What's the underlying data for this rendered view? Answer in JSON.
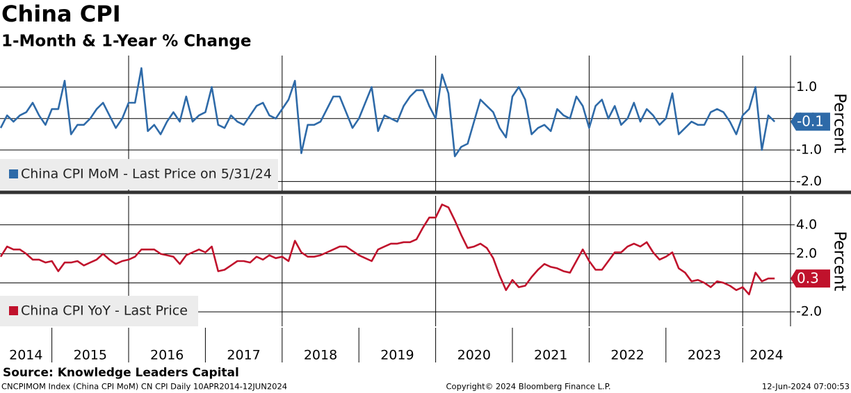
{
  "header": {
    "title": "China CPI",
    "subtitle": "1-Month & 1-Year % Change"
  },
  "chart_data": [
    {
      "type": "line",
      "series": [
        {
          "name": "China CPI MoM - Last Price on 5/31/24",
          "color": "#2e6aa8",
          "values": [
            -0.3,
            0.1,
            -0.1,
            0.1,
            0.2,
            0.5,
            0.1,
            -0.2,
            0.3,
            0.3,
            1.2,
            -0.5,
            -0.2,
            -0.2,
            0.0,
            0.3,
            0.5,
            0.1,
            -0.3,
            0.0,
            0.5,
            0.5,
            1.6,
            -0.4,
            -0.2,
            -0.5,
            -0.1,
            0.2,
            -0.1,
            0.7,
            -0.1,
            0.1,
            0.2,
            1.0,
            -0.2,
            -0.3,
            0.1,
            -0.1,
            -0.2,
            0.1,
            0.4,
            0.5,
            0.1,
            0.0,
            0.3,
            0.6,
            1.2,
            -1.1,
            -0.2,
            -0.2,
            -0.1,
            0.3,
            0.7,
            0.7,
            0.2,
            -0.3,
            0.0,
            0.5,
            1.0,
            -0.4,
            0.1,
            0.0,
            -0.1,
            0.4,
            0.7,
            0.9,
            0.9,
            0.4,
            0.0,
            1.4,
            0.8,
            -1.2,
            -0.9,
            -0.8,
            -0.1,
            0.6,
            0.4,
            0.2,
            -0.3,
            -0.6,
            0.7,
            1.0,
            0.6,
            -0.5,
            -0.3,
            -0.2,
            -0.4,
            0.3,
            0.1,
            0.0,
            0.7,
            0.4,
            -0.3,
            0.4,
            0.6,
            0.0,
            0.4,
            -0.2,
            0.0,
            0.5,
            -0.1,
            0.3,
            0.1,
            -0.2,
            0.0,
            0.8,
            -0.5,
            -0.3,
            -0.1,
            -0.2,
            -0.2,
            0.2,
            0.3,
            0.2,
            -0.1,
            -0.5,
            0.1,
            0.3,
            1.0,
            -1.0,
            0.1,
            -0.1
          ]
        }
      ],
      "ylim": [
        -2.3,
        2.0
      ],
      "yticks": [
        {
          "value": 1,
          "label": "1.0"
        },
        {
          "value": 0,
          "label": "0.0"
        },
        {
          "value": -1,
          "label": "-1.0"
        },
        {
          "value": -2,
          "label": "-2.0"
        }
      ],
      "y_label": "Percent",
      "grid": true
    },
    {
      "type": "line",
      "series": [
        {
          "name": "China CPI YoY - Last Price",
          "color": "#c0122c",
          "values": [
            1.8,
            2.5,
            2.3,
            2.3,
            2.0,
            1.6,
            1.6,
            1.4,
            1.5,
            0.8,
            1.4,
            1.4,
            1.5,
            1.2,
            1.4,
            1.6,
            2.0,
            1.6,
            1.3,
            1.5,
            1.6,
            1.8,
            2.3,
            2.3,
            2.3,
            2.0,
            1.9,
            1.8,
            1.3,
            1.9,
            2.1,
            2.3,
            2.1,
            2.5,
            0.8,
            0.9,
            1.2,
            1.5,
            1.5,
            1.4,
            1.8,
            1.6,
            1.9,
            1.7,
            1.8,
            1.5,
            2.9,
            2.1,
            1.8,
            1.8,
            1.9,
            2.1,
            2.3,
            2.5,
            2.5,
            2.2,
            1.9,
            1.7,
            1.5,
            2.3,
            2.5,
            2.7,
            2.7,
            2.8,
            2.8,
            3.0,
            3.8,
            4.5,
            4.5,
            5.4,
            5.2,
            4.3,
            3.3,
            2.4,
            2.5,
            2.7,
            2.4,
            1.7,
            0.5,
            -0.5,
            0.2,
            -0.3,
            -0.2,
            0.4,
            0.9,
            1.3,
            1.1,
            1.0,
            0.8,
            0.7,
            1.5,
            2.3,
            1.5,
            0.9,
            0.9,
            1.5,
            2.1,
            2.1,
            2.5,
            2.7,
            2.5,
            2.8,
            2.1,
            1.6,
            1.8,
            2.1,
            1.0,
            0.7,
            0.1,
            0.2,
            0.0,
            -0.3,
            0.1,
            0.0,
            -0.2,
            -0.5,
            -0.3,
            -0.8,
            0.7,
            0.1,
            0.3,
            0.3
          ]
        }
      ],
      "ylim": [
        -3.0,
        6.0
      ],
      "yticks": [
        {
          "value": 4,
          "label": "4.0"
        },
        {
          "value": 2,
          "label": "2.0"
        },
        {
          "value": 0,
          "label": "0.0"
        },
        {
          "value": -2,
          "label": "-2.0"
        }
      ],
      "y_label": "Percent",
      "grid": true
    }
  ],
  "x_axis": {
    "labels": [
      "2014",
      "2015",
      "2016",
      "2017",
      "2018",
      "2019",
      "2020",
      "2021",
      "2022",
      "2023",
      "2024"
    ]
  },
  "footer": {
    "source": "Source: Knowledge Leaders Capital",
    "left": "CNCPIMOM Index (China CPI MoM) CN CPI  Daily 10APR2014-12JUN2024",
    "center": "Copyright© 2024 Bloomberg Finance L.P.",
    "right": "12-Jun-2024 07:00:53"
  }
}
